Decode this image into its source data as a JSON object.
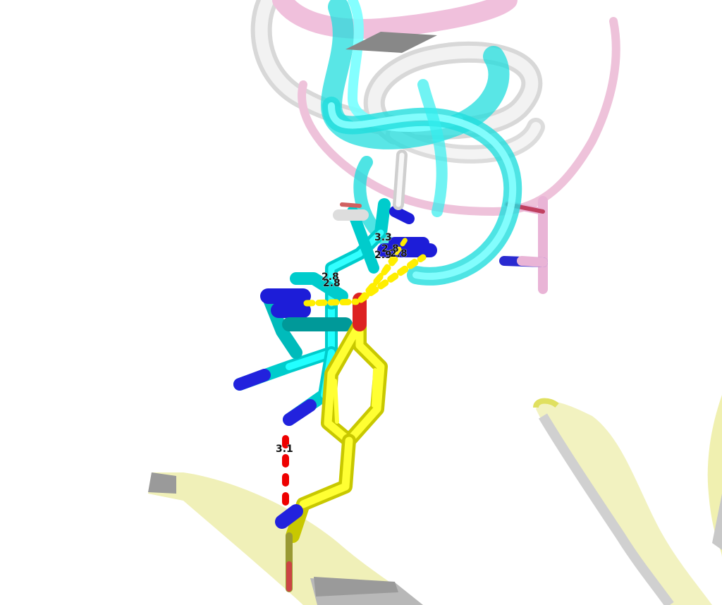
{
  "viewer": {
    "background": "#ffffff",
    "colors": {
      "cyan_carbon": "#00ffff",
      "yellow_carbon": "#ffff00",
      "nitrogen": "#2020e0",
      "oxygen": "#e03030",
      "pink_cartoon": "#f0b0d8",
      "white_cartoon": "#e8e8e8",
      "pale_yellow_cartoon": "#eeeeaa",
      "hbond_yellow": "#ffee00",
      "hbond_red": "#ee0000"
    }
  },
  "distance_labels": [
    {
      "id": "d1",
      "text": "3.3"
    },
    {
      "id": "d2",
      "text": "2.8"
    },
    {
      "id": "d3",
      "text": "2.9"
    },
    {
      "id": "d4",
      "text": "2.8"
    },
    {
      "id": "d5",
      "text": "2.8"
    },
    {
      "id": "d6",
      "text": "2.8"
    },
    {
      "id": "d7",
      "text": "3.1"
    }
  ]
}
